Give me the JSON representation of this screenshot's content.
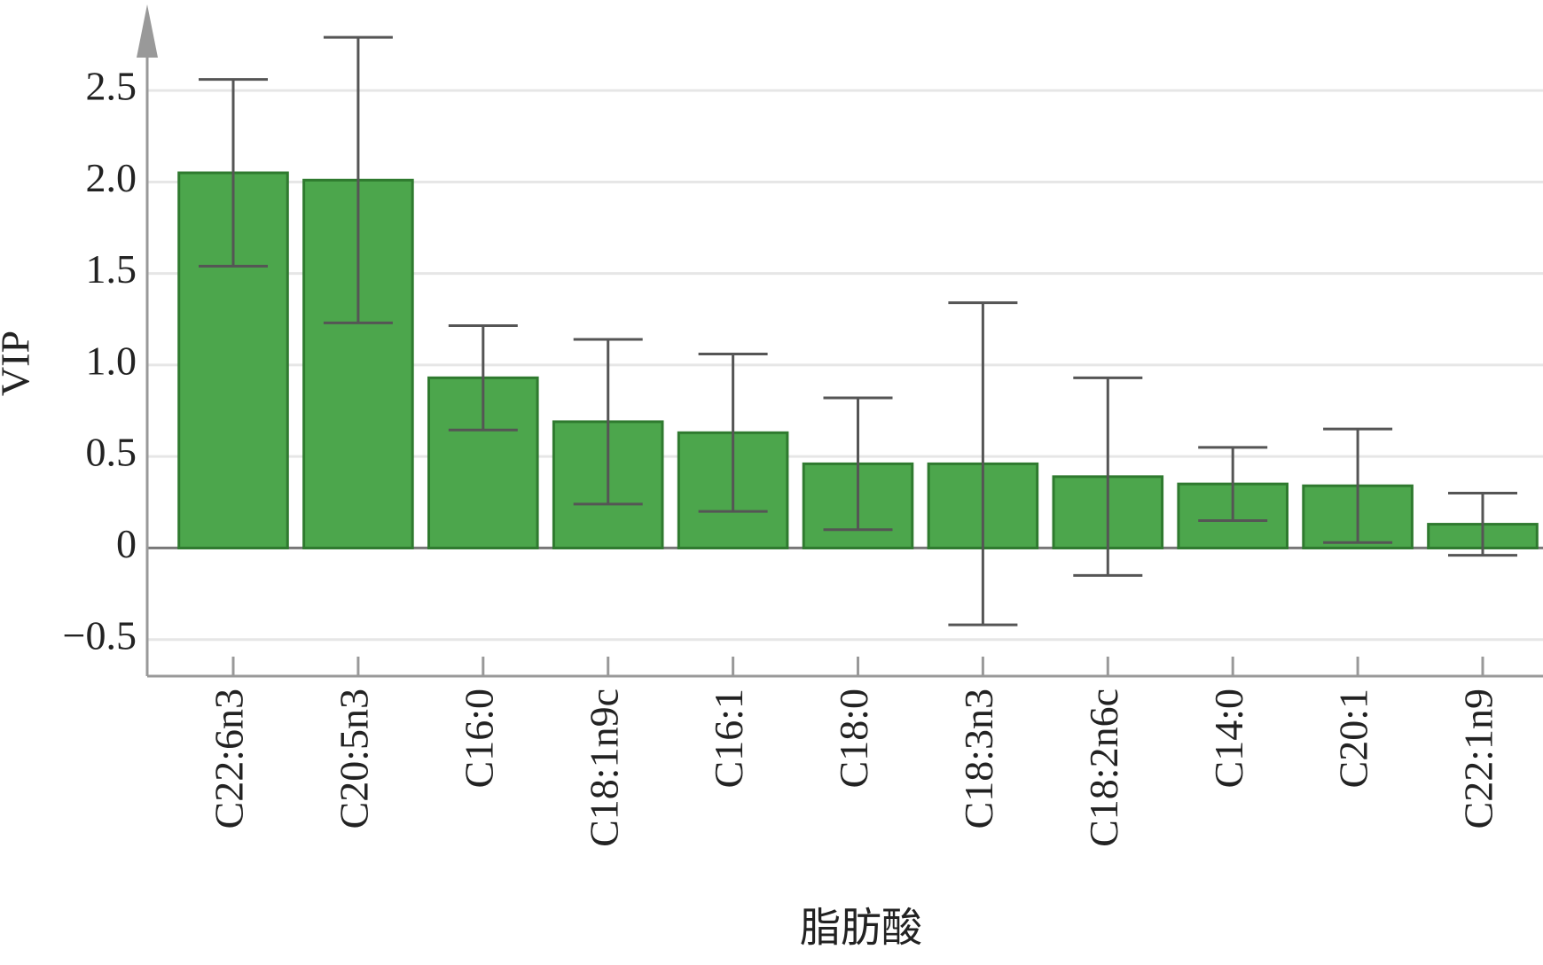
{
  "chart_data": {
    "type": "bar",
    "x_label": "脂肪酸",
    "y_label": "VIP",
    "categories": [
      "C22:6n3",
      "C20:5n3",
      "C16:0",
      "C18:1n9c",
      "C16:1",
      "C18:0",
      "C18:3n3",
      "C18:2n6c",
      "C14:0",
      "C20:1",
      "C22:1n9"
    ],
    "values": [
      2.05,
      2.01,
      0.93,
      0.69,
      0.63,
      0.46,
      0.46,
      0.39,
      0.35,
      0.34,
      0.13
    ],
    "errors": [
      0.51,
      0.78,
      0.285,
      0.45,
      0.43,
      0.36,
      0.88,
      0.54,
      0.2,
      0.31,
      0.17
    ],
    "color": "#4ca64c",
    "error_color": "#555555",
    "ylim": [
      -0.7,
      2.97
    ],
    "yticks": [
      {
        "value": -0.5,
        "label": "−0.5"
      },
      {
        "value": 0,
        "label": "0"
      },
      0.5,
      {
        "value": 1,
        "label": "1.0"
      },
      1.5,
      {
        "value": 2,
        "label": "2.0"
      },
      2.5
    ],
    "grid": true
  }
}
